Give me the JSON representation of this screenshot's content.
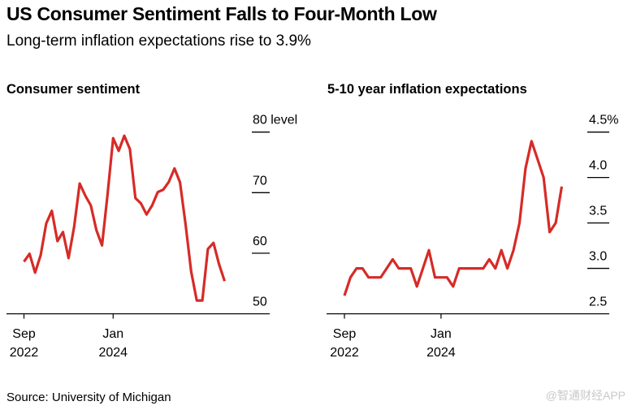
{
  "header": {
    "title": "US Consumer Sentiment Falls to Four-Month Low",
    "subtitle": "Long-term inflation expectations rise to 3.9%"
  },
  "footer": {
    "source": "Source: University of Michigan",
    "watermark": "@智通财经APP"
  },
  "colors": {
    "line": "#d62b27",
    "axis": "#000000"
  },
  "chart_data": [
    {
      "type": "line",
      "title": "Consumer sentiment",
      "xlabel": "",
      "ylabel": "level",
      "x_start": "Sep 2022",
      "x_end": "Sep 2025",
      "x_unit": "month",
      "ylim": [
        50,
        80
      ],
      "yticks": [
        {
          "value": 80,
          "label": "80 level"
        },
        {
          "value": 70,
          "label": "70"
        },
        {
          "value": 60,
          "label": "60"
        },
        {
          "value": 50,
          "label": "50"
        }
      ],
      "xticks": [
        {
          "index": 0,
          "month": "Sep",
          "year": "2022"
        },
        {
          "index": 16,
          "month": "Jan",
          "year": "2024"
        }
      ],
      "values": [
        58.6,
        59.9,
        56.8,
        59.7,
        64.9,
        67.0,
        62.0,
        63.5,
        59.2,
        64.4,
        71.5,
        69.5,
        67.9,
        63.8,
        61.3,
        69.7,
        79.0,
        76.9,
        79.4,
        77.2,
        69.1,
        68.2,
        66.4,
        67.9,
        70.1,
        70.5,
        71.8,
        74.0,
        71.7,
        64.7,
        57.0,
        52.2,
        52.2,
        60.7,
        61.7,
        58.2,
        55.4
      ]
    },
    {
      "type": "line",
      "title": "5-10 year inflation expectations",
      "xlabel": "",
      "ylabel": "%",
      "x_start": "Sep 2022",
      "x_end": "Sep 2025",
      "x_unit": "month",
      "ylim": [
        2.5,
        4.5
      ],
      "yticks": [
        {
          "value": 4.5,
          "label": "4.5%"
        },
        {
          "value": 4.0,
          "label": "4.0"
        },
        {
          "value": 3.5,
          "label": "3.5"
        },
        {
          "value": 3.0,
          "label": "3.0"
        },
        {
          "value": 2.5,
          "label": "2.5"
        }
      ],
      "xticks": [
        {
          "index": 0,
          "month": "Sep",
          "year": "2022"
        },
        {
          "index": 16,
          "month": "Jan",
          "year": "2024"
        }
      ],
      "values": [
        2.7,
        2.9,
        3.0,
        3.0,
        2.9,
        2.9,
        2.9,
        3.0,
        3.1,
        3.0,
        3.0,
        3.0,
        2.8,
        3.0,
        3.2,
        2.9,
        2.9,
        2.9,
        2.8,
        3.0,
        3.0,
        3.0,
        3.0,
        3.0,
        3.1,
        3.0,
        3.2,
        3.0,
        3.2,
        3.5,
        4.1,
        4.4,
        4.2,
        4.0,
        3.4,
        3.5,
        3.9
      ]
    }
  ]
}
